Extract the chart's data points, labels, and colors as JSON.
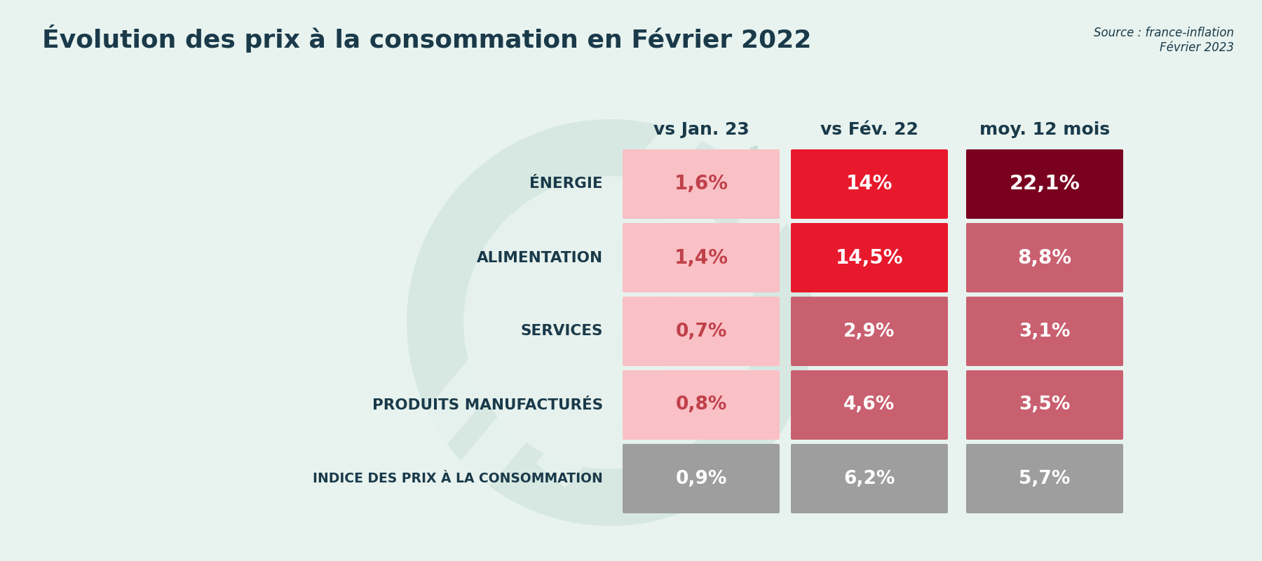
{
  "title": "Évolution des prix à la consommation en Février 2022",
  "source": "Source : france-inflation\nFévrier 2023",
  "background_color": "#e8f3ef",
  "col_headers": [
    "vs Jan. 23",
    "vs Fév. 22",
    "moy. 12 mois"
  ],
  "row_labels": [
    "ÉNERGIE",
    "ALIMENTATION",
    "SERVICES",
    "PRODUITS MANUFACTURÉS",
    "INDICE DES PRIX À LA CONSOMMATION"
  ],
  "values": [
    [
      "1,6%",
      "14%",
      "22,1%"
    ],
    [
      "1,4%",
      "14,5%",
      "8,8%"
    ],
    [
      "0,7%",
      "2,9%",
      "3,1%"
    ],
    [
      "0,8%",
      "4,6%",
      "3,5%"
    ],
    [
      "0,9%",
      "6,2%",
      "5,7%"
    ]
  ],
  "cell_colors": [
    [
      "#f9c0c5",
      "#e8192c",
      "#7a0020"
    ],
    [
      "#f9c0c5",
      "#e8192c",
      "#c96070"
    ],
    [
      "#f9c0c5",
      "#c96070",
      "#c96070"
    ],
    [
      "#f9c0c5",
      "#c96070",
      "#c96070"
    ],
    [
      "#9e9e9e",
      "#9e9e9e",
      "#9e9e9e"
    ]
  ],
  "text_colors": [
    [
      "#c0404a",
      "#ffffff",
      "#ffffff"
    ],
    [
      "#c0404a",
      "#ffffff",
      "#ffffff"
    ],
    [
      "#c0404a",
      "#ffffff",
      "#ffffff"
    ],
    [
      "#c0404a",
      "#ffffff",
      "#ffffff"
    ],
    [
      "#ffffff",
      "#ffffff",
      "#ffffff"
    ]
  ],
  "row_label_color": "#1a3a4a",
  "col_header_color": "#1a3a4a",
  "title_color": "#1a3a4a",
  "watermark_color": "#c8dfd6",
  "fig_width": 18.0,
  "fig_height": 8.0,
  "dpi": 100
}
